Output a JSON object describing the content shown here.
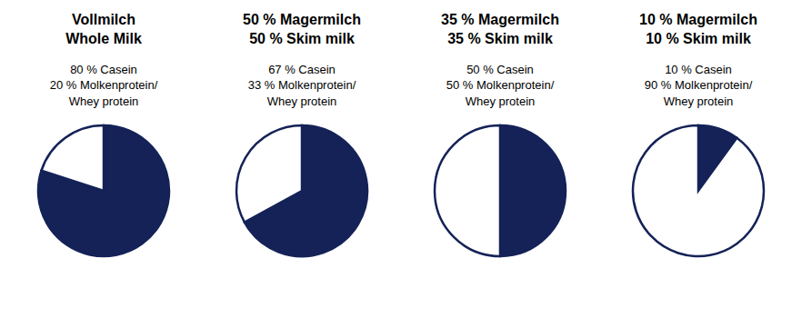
{
  "chart_data": [
    {
      "type": "pie",
      "title": "Vollmilch\nWhole Milk",
      "subtitle": "80 % Casein\n20 % Molkenprotein/\nWhey protein",
      "values": [
        80,
        20
      ],
      "colors": [
        "#142257",
        "#ffffff"
      ],
      "color": "#142257"
    },
    {
      "type": "pie",
      "title": "50 % Magermilch\n50 % Skim milk",
      "subtitle": "67 % Casein\n33 % Molkenprotein/\nWhey protein",
      "values": [
        67,
        33
      ],
      "colors": [
        "#142257",
        "#ffffff"
      ],
      "color": "#142257"
    },
    {
      "type": "pie",
      "title": "35 % Magermilch\n35 % Skim milk",
      "subtitle": "50 % Casein\n50 % Molkenprotein/\nWhey protein",
      "values": [
        50,
        50
      ],
      "colors": [
        "#142257",
        "#ffffff"
      ],
      "color": "#142257"
    },
    {
      "type": "pie",
      "title": "10 % Magermilch\n10 % Skim milk",
      "subtitle": "10 % Casein\n90 % Molkenprotein/\nWhey protein",
      "values": [
        10,
        90
      ],
      "colors": [
        "#142257",
        "#ffffff"
      ],
      "color": "#142257"
    }
  ]
}
